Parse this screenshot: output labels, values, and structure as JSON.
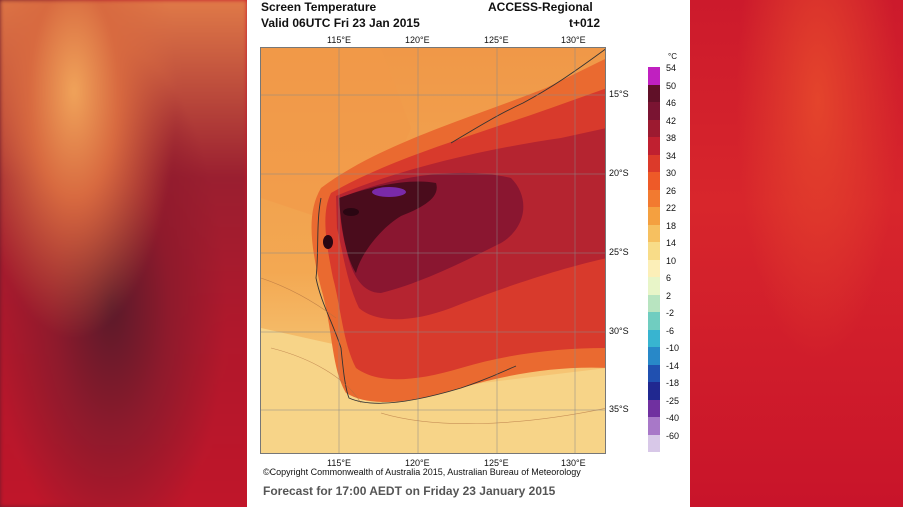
{
  "header": {
    "title": "Screen Temperature",
    "valid": "Valid 06UTC Fri 23 Jan 2015",
    "model": "ACCESS-Regional",
    "lead": "t+012"
  },
  "map": {
    "lon_labels": [
      "115°E",
      "120°E",
      "125°E",
      "130°E"
    ],
    "lat_labels": [
      "15°S",
      "20°S",
      "25°S",
      "30°S",
      "35°S"
    ],
    "colors": {
      "ocean_north": "#f19a4a",
      "ocean_south": "#f7cf7f",
      "inland_hot": "#8c1630",
      "core_hot": "#4a0c1c",
      "extreme": "#7a2aa8"
    }
  },
  "colorbar": {
    "unit": "°C",
    "labels": [
      "54",
      "50",
      "46",
      "42",
      "38",
      "34",
      "30",
      "26",
      "22",
      "18",
      "14",
      "10",
      "6",
      "2",
      "-2",
      "-6",
      "-10",
      "-14",
      "-18",
      "-25",
      "-40",
      "-60"
    ],
    "colors": [
      "#c020c0",
      "#601028",
      "#7a1432",
      "#9c1a30",
      "#c02030",
      "#dc3a2a",
      "#ee5a28",
      "#f27a30",
      "#f4a040",
      "#f6c060",
      "#f8dc88",
      "#fcefb8",
      "#e8f5c8",
      "#b8e4c0",
      "#70cdc0",
      "#38b4d0",
      "#2888c8",
      "#2050b0",
      "#202890",
      "#7030a0",
      "#a878c8",
      "#d8c8e8"
    ]
  },
  "footer": {
    "copyright": "©Copyright Commonwealth of Australia 2015, Australian Bureau of Meteorology",
    "forecast": "Forecast for 17:00 AEDT on Friday 23 January 2015"
  }
}
